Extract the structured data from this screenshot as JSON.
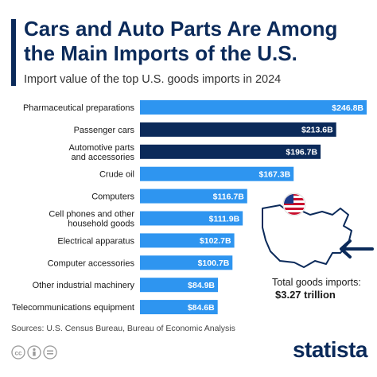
{
  "header": {
    "title": "Cars and Auto Parts Are Among the Main Imports of the U.S.",
    "subtitle": "Import value of the top U.S. goods imports in 2024"
  },
  "chart_data": {
    "type": "bar",
    "orientation": "horizontal",
    "title": "Cars and Auto Parts Are Among the Main Imports of the U.S.",
    "subtitle": "Import value of the top U.S. goods imports in 2024",
    "unit": "billion USD",
    "categories": [
      [
        "Pharmaceutical preparations"
      ],
      [
        "Passenger cars"
      ],
      [
        "Automotive parts",
        "and accessories"
      ],
      [
        "Crude oil"
      ],
      [
        "Computers"
      ],
      [
        "Cell phones and other",
        "household goods"
      ],
      [
        "Electrical apparatus"
      ],
      [
        "Computer accessories"
      ],
      [
        "Other industrial machinery"
      ],
      [
        "Telecommunications equipment"
      ]
    ],
    "values": [
      246.8,
      213.6,
      196.7,
      167.3,
      116.7,
      111.9,
      102.7,
      100.7,
      84.9,
      84.6
    ],
    "value_labels": [
      "$246.8B",
      "$213.6B",
      "$196.7B",
      "$167.3B",
      "$116.7B",
      "$111.9B",
      "$102.7B",
      "$100.7B",
      "$84.9B",
      "$84.6B"
    ],
    "highlighted": [
      false,
      true,
      true,
      false,
      false,
      false,
      false,
      false,
      false,
      false
    ],
    "colors": {
      "default": "#2e95f0",
      "highlight": "#0b2a5a"
    }
  },
  "annotation": {
    "total_label": "Total goods imports:",
    "total_value": "$3.27 trillion"
  },
  "footer": {
    "source": "Sources: U.S. Census Bureau, Bureau of Economic Analysis",
    "brand": "statista"
  }
}
